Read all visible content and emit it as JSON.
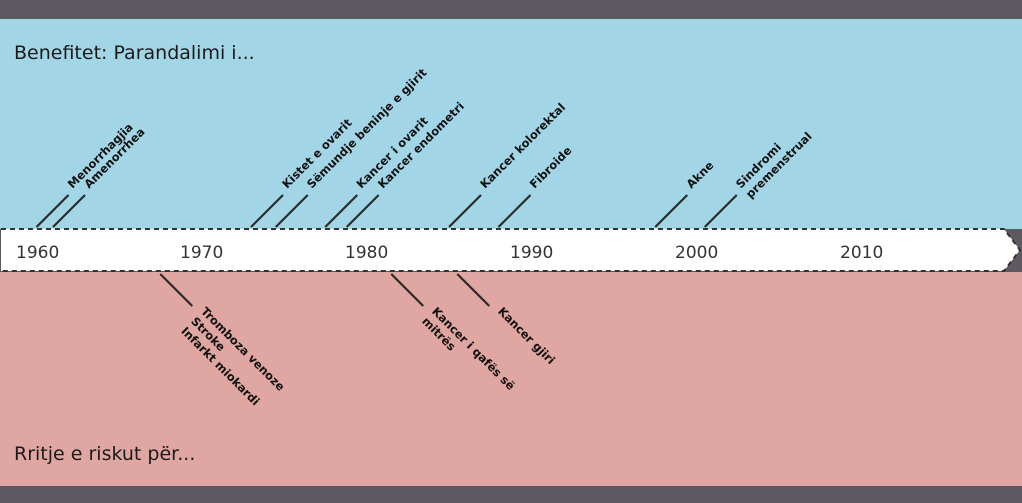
{
  "benefits": {
    "title": "Benefitet: Parandalimi i...",
    "items": [
      {
        "year": 1961,
        "lines": [
          "Menorrhagjia"
        ]
      },
      {
        "year": 1962,
        "lines": [
          "Amenorrhea"
        ]
      },
      {
        "year": 1974,
        "lines": [
          "Kistet e ovarit"
        ]
      },
      {
        "year": 1975.5,
        "lines": [
          "Sëmundje beninje e gjirit"
        ]
      },
      {
        "year": 1978.5,
        "lines": [
          "Kancer i ovarit"
        ]
      },
      {
        "year": 1979.8,
        "lines": [
          "Kancer endometri"
        ]
      },
      {
        "year": 1986,
        "lines": [
          "Kancer kolorektal"
        ]
      },
      {
        "year": 1989,
        "lines": [
          "Fibroide"
        ]
      },
      {
        "year": 1998.5,
        "lines": [
          "Akne"
        ]
      },
      {
        "year": 2001.5,
        "lines": [
          "Sindromi",
          "premenstrual"
        ]
      }
    ]
  },
  "risks": {
    "title": "Rritje e riskut për...",
    "items": [
      {
        "year": 1968.5,
        "lines": [
          "Tromboza venoze",
          "Stroke",
          "Infarkt miokardi"
        ]
      },
      {
        "year": 1982.5,
        "lines": [
          "Kancer i qafës së",
          "mitrës"
        ]
      },
      {
        "year": 1986.5,
        "lines": [
          "Kancer gjiri"
        ]
      }
    ]
  },
  "timeline": {
    "years": [
      "1960",
      "1970",
      "1980",
      "1990",
      "2000",
      "2010"
    ]
  },
  "colors": {
    "benefit_bg": "#a2d6e7",
    "risk_bg": "#e0a6a1",
    "frame": "#5e5860",
    "timeline_bg": "#ffffff",
    "line": "#2a2a2a"
  }
}
